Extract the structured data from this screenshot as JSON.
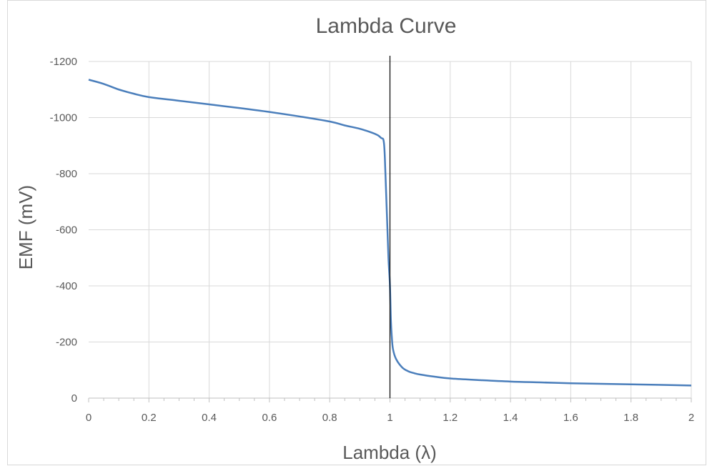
{
  "chart_data": {
    "type": "line",
    "title": "Lambda Curve",
    "xlabel": "Lambda (λ)",
    "ylabel": "EMF (mV)",
    "xlim": [
      0,
      2
    ],
    "ylim": [
      0,
      -1200
    ],
    "y_axis_reversed": true,
    "grid": true,
    "legend": "none",
    "x_ticks": [
      "0",
      "0.2",
      "0.4",
      "0.6",
      "0.8",
      "1",
      "1.2",
      "1.4",
      "1.6",
      "1.8",
      "2"
    ],
    "y_ticks": [
      "0",
      "-200",
      "-400",
      "-600",
      "-800",
      "-1000",
      "-1200"
    ],
    "reference_line_x": 1,
    "series": [
      {
        "color": "#4a7ebb",
        "x": [
          0,
          0.05,
          0.1,
          0.15,
          0.2,
          0.3,
          0.4,
          0.5,
          0.6,
          0.7,
          0.8,
          0.85,
          0.9,
          0.95,
          0.97,
          0.98,
          0.985,
          0.99,
          0.995,
          1.0,
          1.003,
          1.006,
          1.01,
          1.02,
          1.04,
          1.06,
          1.08,
          1.1,
          1.15,
          1.2,
          1.3,
          1.4,
          1.5,
          1.6,
          1.7,
          1.8,
          1.9,
          2.0
        ],
        "y": [
          -1135,
          -1120,
          -1100,
          -1085,
          -1073,
          -1060,
          -1047,
          -1034,
          -1020,
          -1004,
          -986,
          -972,
          -960,
          -942,
          -928,
          -910,
          -800,
          -650,
          -500,
          -400,
          -280,
          -220,
          -175,
          -140,
          -110,
          -96,
          -89,
          -84,
          -76,
          -70,
          -64,
          -59,
          -56,
          -53,
          -51,
          -49,
          -47,
          -45
        ]
      }
    ],
    "colors": {
      "line": "#4a7ebb",
      "grid": "#d9d9d9",
      "reference": "#000000",
      "text": "#595959"
    }
  }
}
